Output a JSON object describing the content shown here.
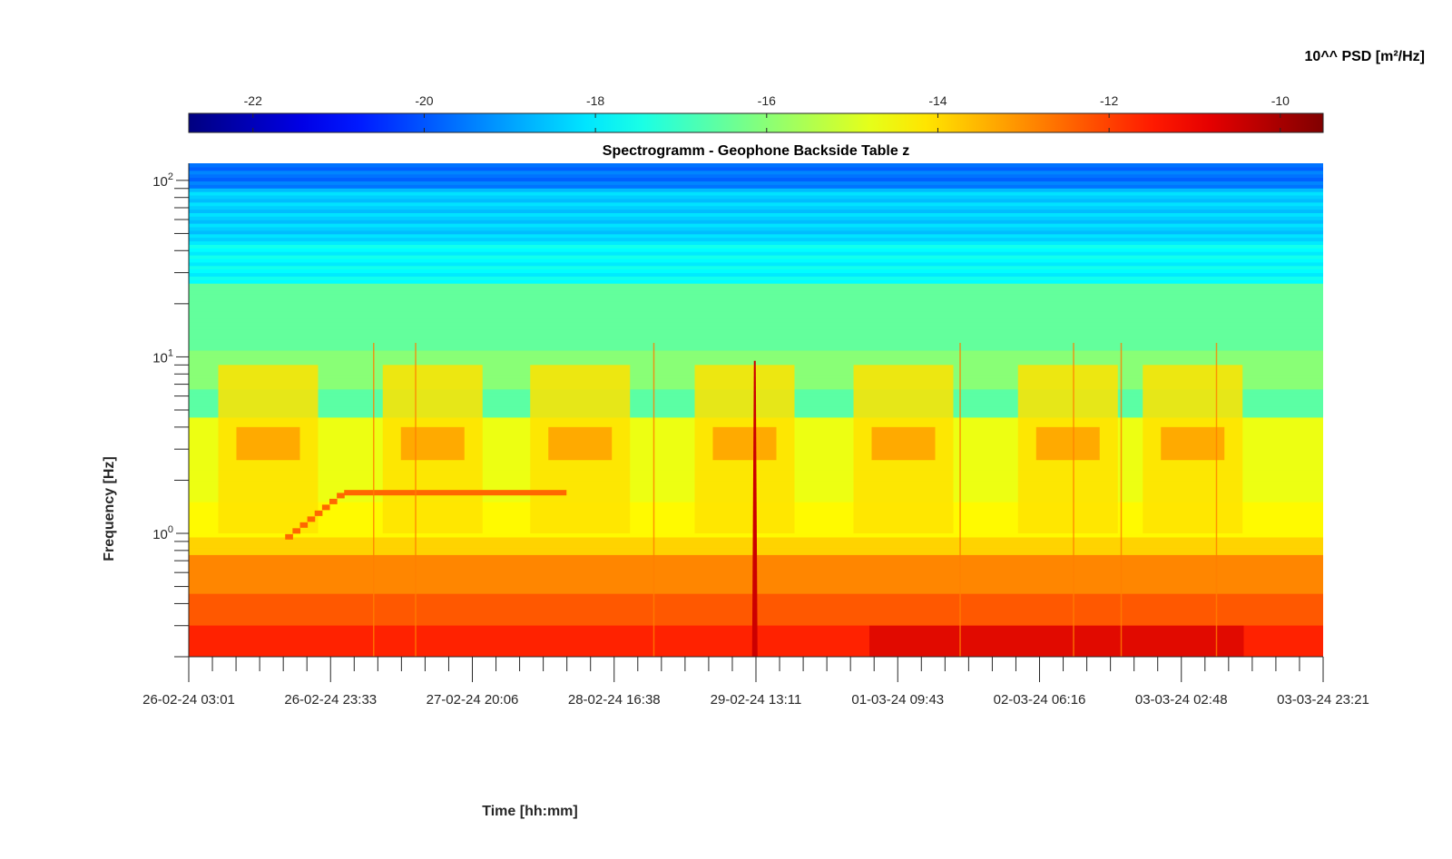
{
  "chart_data": {
    "type": "heatmap",
    "title": "Spectrogramm - Geophone Backside Table z",
    "xlabel": "Time [hh:mm]",
    "ylabel": "Frequency [Hz]",
    "colorbar_label": "10^^ PSD [m²/Hz]",
    "colormap": "jet",
    "y_scale": "log",
    "ylim": [
      0.2,
      125
    ],
    "x_ticks": [
      "26-02-24 03:01",
      "26-02-24 23:33",
      "27-02-24 20:06",
      "28-02-24 16:38",
      "29-02-24 13:11",
      "01-03-24 09:43",
      "02-03-24 06:16",
      "03-03-24 02:48",
      "03-03-24 23:21"
    ],
    "x_minor_per_major": 6,
    "y_ticks": [
      {
        "base": "10",
        "exp": "0",
        "value": 1
      },
      {
        "base": "10",
        "exp": "1",
        "value": 10
      },
      {
        "base": "10",
        "exp": "2",
        "value": 100
      }
    ],
    "colorbar_ticks": [
      "-22",
      "-20",
      "-18",
      "-16",
      "-14",
      "-12",
      "-10"
    ],
    "colorbar_range": [
      -22.75,
      -9.5
    ],
    "features": [
      {
        "kind": "ramp-line",
        "value": -12.5,
        "x_start_frac": 0.085,
        "x_end_frac": 0.137,
        "f_start": 0.92,
        "f_end": 1.7
      },
      {
        "kind": "hline",
        "value": -12.5,
        "x_start_frac": 0.137,
        "x_end_frac": 0.333,
        "freq": 1.7
      },
      {
        "kind": "spike",
        "value": -10.5,
        "x_frac": 0.499,
        "f_top": 9.5
      },
      {
        "kind": "vline",
        "value": -12.8,
        "x_frac": 0.163,
        "f_top": 12
      },
      {
        "kind": "vline",
        "value": -12.8,
        "x_frac": 0.2,
        "f_top": 12
      },
      {
        "kind": "vline",
        "value": -12.8,
        "x_frac": 0.41,
        "f_top": 12
      },
      {
        "kind": "vline",
        "value": -12.8,
        "x_frac": 0.68,
        "f_top": 12
      },
      {
        "kind": "vline",
        "value": -12.8,
        "x_frac": 0.78,
        "f_top": 12
      },
      {
        "kind": "vline",
        "value": -12.8,
        "x_frac": 0.822,
        "f_top": 12
      },
      {
        "kind": "vline",
        "value": -12.8,
        "x_frac": 0.906,
        "f_top": 12
      }
    ]
  }
}
